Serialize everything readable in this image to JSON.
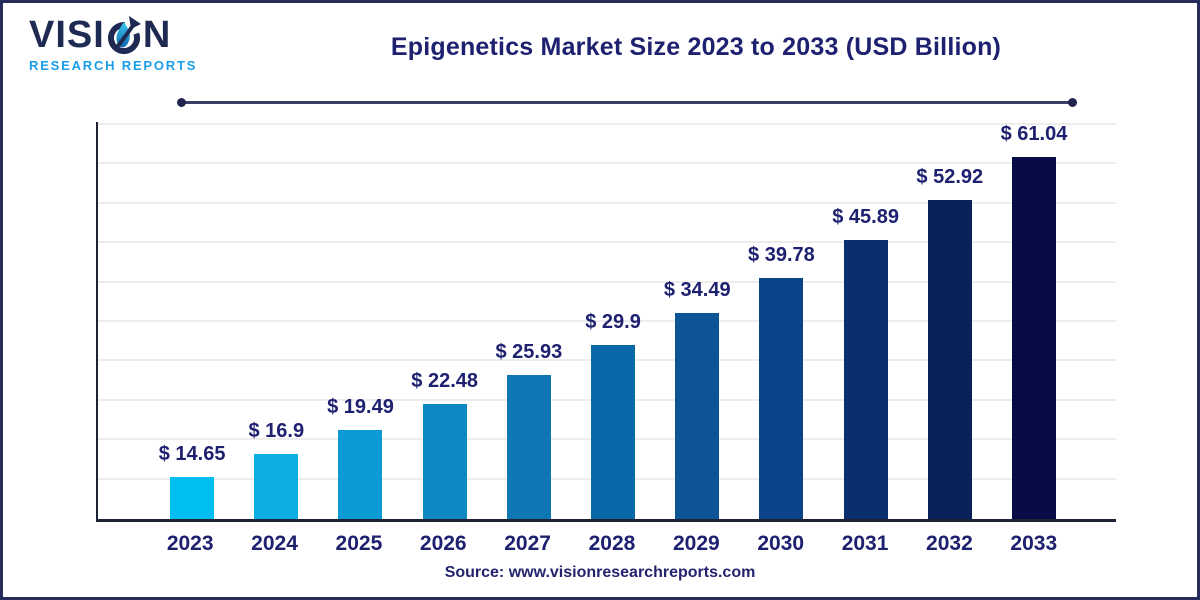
{
  "brand": {
    "name_pre": "VISI",
    "name_post": "N",
    "tagline": "RESEARCH REPORTS"
  },
  "header": {
    "title": "Epigenetics Market Size 2023 to 2033 (USD Billion)"
  },
  "chart_data": {
    "type": "bar",
    "title": "Epigenetics Market Size 2023 to 2033 (USD Billion)",
    "unit": "USD Billion",
    "categories": [
      "2023",
      "2024",
      "2025",
      "2026",
      "2027",
      "2028",
      "2029",
      "2030",
      "2031",
      "2032",
      "2033"
    ],
    "values": [
      14.65,
      16.9,
      19.49,
      22.48,
      25.93,
      29.9,
      34.49,
      39.78,
      45.89,
      52.92,
      61.04
    ],
    "value_labels": [
      "$ 14.65",
      "$ 16.9",
      "$ 19.49",
      "$ 22.48",
      "$ 25.93",
      "$ 29.9",
      "$ 34.49",
      "$ 39.78",
      "$ 45.89",
      "$ 52.92",
      "$ 61.04"
    ],
    "bar_colors": [
      "#00BEF2",
      "#0CAEE4",
      "#0B9AD3",
      "#0E88C2",
      "#0F78B4",
      "#0969A8",
      "#0D5496",
      "#0A4387",
      "#0A2F6E",
      "#0A2058",
      "#070B46"
    ],
    "xlabel": "",
    "ylabel": "",
    "ylim": [
      0,
      65
    ],
    "gridline_count": 10,
    "grid": "horizontal",
    "legend": "none"
  },
  "footer": {
    "source": "Source: www.visionresearchreports.com"
  },
  "colors": {
    "title_navy": "#1E2070",
    "label_navy": "#1E2070",
    "logo_navy": "#1F2A52",
    "logo_blue": "#1A9EE9",
    "frame_border": "#272C5A",
    "axis": "#1D2235",
    "gridline": "#EDEDED",
    "divider": "#3A3F63"
  }
}
